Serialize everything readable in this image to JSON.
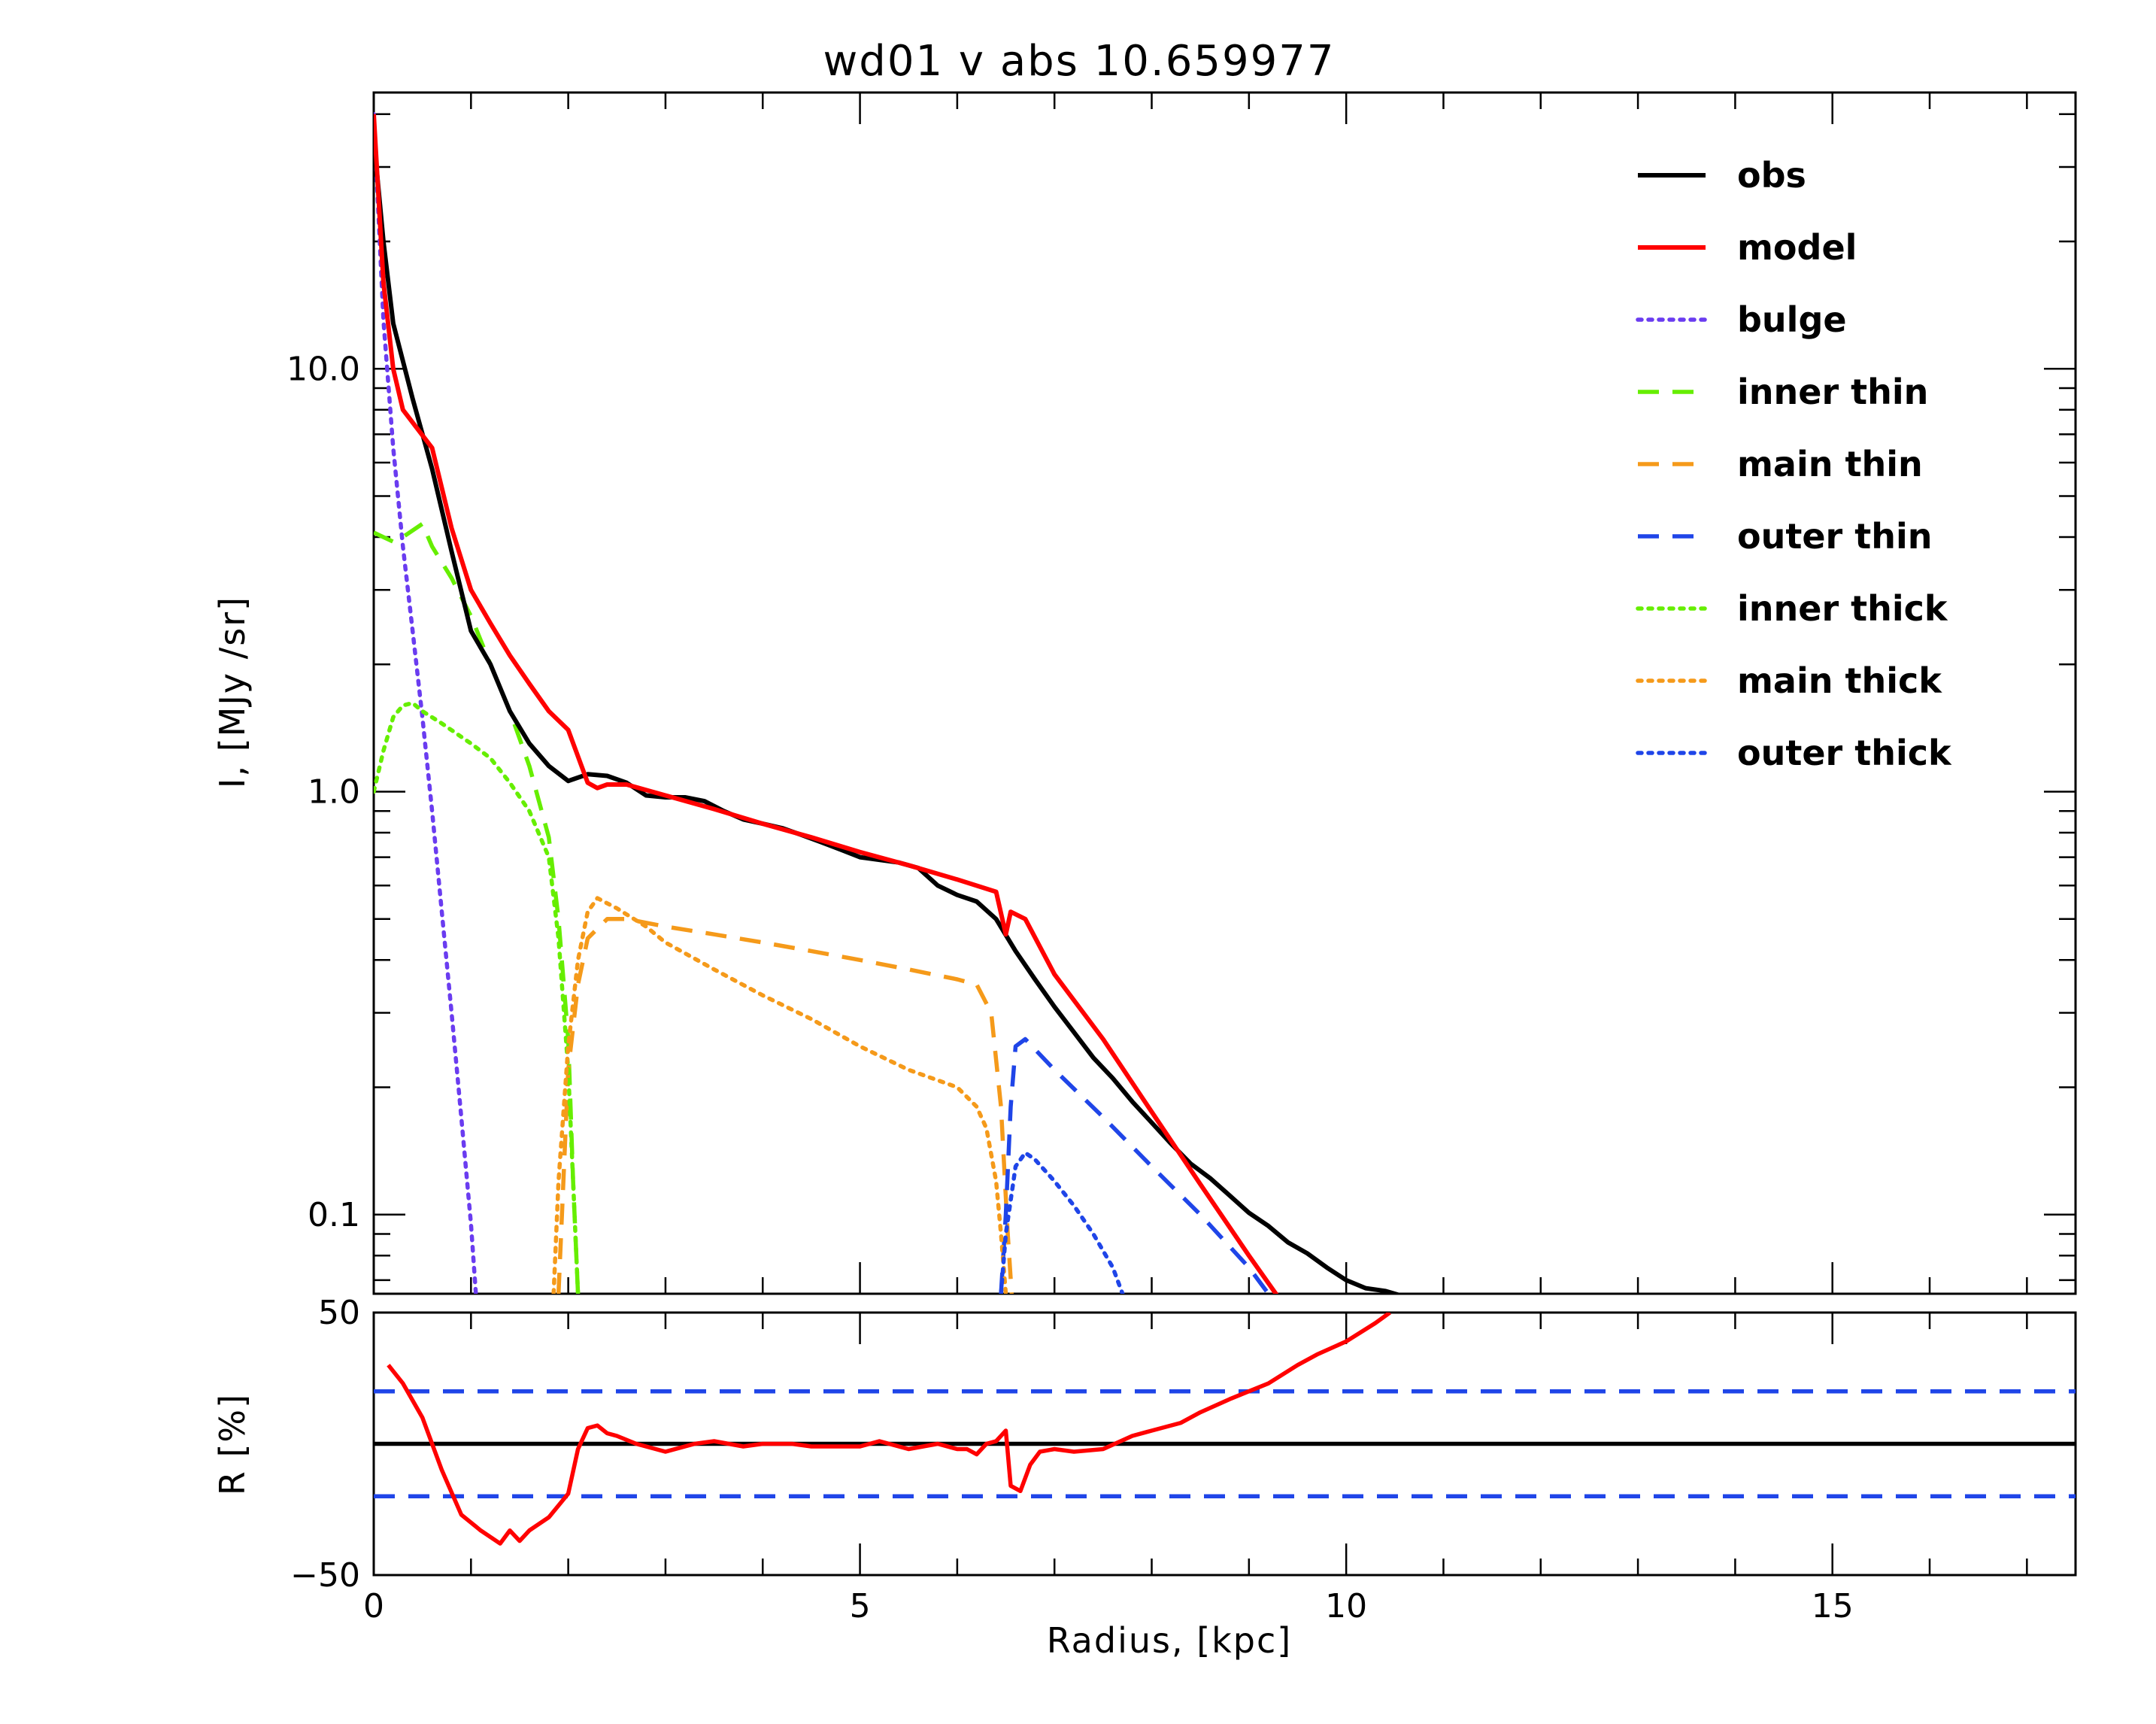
{
  "chart_data": {
    "type": "line",
    "title": "wd01 v abs 10.659977",
    "top_panel": {
      "ylabel": "I, [MJy /sr]",
      "yscale": "log",
      "ylim": [
        0.065,
        45
      ],
      "xlim": [
        0,
        17.5
      ],
      "y_tick_labels": [
        {
          "value": 0.1,
          "label": "0.1"
        },
        {
          "value": 1.0,
          "label": "1.0"
        },
        {
          "value": 10.0,
          "label": "10.0"
        }
      ],
      "legend_position": "top-right",
      "series": [
        {
          "name": "obs",
          "color": "#000000",
          "style": "solid",
          "x": [
            0,
            0.1,
            0.2,
            0.4,
            0.6,
            0.8,
            1.0,
            1.2,
            1.4,
            1.6,
            1.8,
            2.0,
            2.2,
            2.4,
            2.6,
            2.8,
            3.0,
            3.2,
            3.4,
            3.6,
            3.8,
            4.0,
            4.2,
            4.4,
            4.6,
            4.8,
            5.0,
            5.2,
            5.4,
            5.6,
            5.8,
            6.0,
            6.2,
            6.4,
            6.6,
            6.8,
            7.0,
            7.2,
            7.4,
            7.6,
            7.8,
            8.0,
            8.2,
            8.4,
            8.6,
            8.8,
            9.0,
            9.2,
            9.4,
            9.6,
            9.8,
            10.0,
            10.2,
            10.4,
            10.6,
            10.8
          ],
          "y": [
            35,
            20,
            12.8,
            8.5,
            5.8,
            3.7,
            2.4,
            2.0,
            1.55,
            1.3,
            1.15,
            1.06,
            1.1,
            1.09,
            1.05,
            0.98,
            0.97,
            0.97,
            0.95,
            0.9,
            0.86,
            0.84,
            0.82,
            0.79,
            0.76,
            0.73,
            0.7,
            0.69,
            0.68,
            0.66,
            0.6,
            0.57,
            0.55,
            0.5,
            0.42,
            0.36,
            0.31,
            0.27,
            0.235,
            0.21,
            0.185,
            0.165,
            0.147,
            0.132,
            0.122,
            0.111,
            0.101,
            0.094,
            0.086,
            0.081,
            0.075,
            0.07,
            0.067,
            0.066,
            0.064,
            0.061
          ]
        },
        {
          "name": "model",
          "color": "#ff0000",
          "style": "solid",
          "x": [
            0,
            0.1,
            0.2,
            0.3,
            0.6,
            0.8,
            1.0,
            1.2,
            1.4,
            1.6,
            1.8,
            2.0,
            2.2,
            2.3,
            2.4,
            2.6,
            3.0,
            3.5,
            4.0,
            4.5,
            5.0,
            5.5,
            6.0,
            6.4,
            6.5,
            6.55,
            6.7,
            7.0,
            7.5,
            8.0,
            8.5,
            9.0,
            9.5
          ],
          "y": [
            40,
            16,
            10,
            8,
            6.5,
            4.2,
            3.0,
            2.5,
            2.1,
            1.8,
            1.55,
            1.4,
            1.05,
            1.02,
            1.04,
            1.04,
            0.98,
            0.91,
            0.84,
            0.78,
            0.72,
            0.67,
            0.62,
            0.58,
            0.46,
            0.52,
            0.5,
            0.37,
            0.26,
            0.175,
            0.118,
            0.08,
            0.055
          ]
        },
        {
          "name": "bulge",
          "color": "#6a3cf0",
          "style": "dotted",
          "x": [
            0,
            0.1,
            0.2,
            0.3,
            0.4,
            0.5,
            0.6,
            0.7,
            0.8,
            0.9,
            1.0,
            1.05
          ],
          "y": [
            40,
            13,
            6.5,
            3.8,
            2.4,
            1.5,
            0.9,
            0.52,
            0.3,
            0.17,
            0.095,
            0.065
          ]
        },
        {
          "name": "inner thin",
          "color": "#66ee00",
          "style": "dashed",
          "x": [
            0,
            0.2,
            0.3,
            0.5,
            0.6,
            0.8,
            1.0,
            1.2,
            1.4,
            1.6,
            1.8,
            1.9,
            2.0,
            2.05,
            2.1
          ],
          "y": [
            4.1,
            3.9,
            4.0,
            4.3,
            3.8,
            3.2,
            2.6,
            2.0,
            1.55,
            1.15,
            0.78,
            0.5,
            0.26,
            0.12,
            0.065
          ]
        },
        {
          "name": "main thin",
          "color": "#f59a1a",
          "style": "dashed",
          "x": [
            1.9,
            1.95,
            2.0,
            2.1,
            2.2,
            2.4,
            2.6,
            3.0,
            3.5,
            4.0,
            4.5,
            5.0,
            5.5,
            6.0,
            6.2,
            6.35,
            6.45,
            6.52,
            6.56
          ],
          "y": [
            0.065,
            0.12,
            0.22,
            0.35,
            0.45,
            0.5,
            0.5,
            0.48,
            0.46,
            0.44,
            0.42,
            0.4,
            0.38,
            0.36,
            0.35,
            0.3,
            0.18,
            0.09,
            0.065
          ]
        },
        {
          "name": "outer thin",
          "color": "#1f45e8",
          "style": "dashed",
          "x": [
            6.45,
            6.5,
            6.55,
            6.6,
            6.7,
            7.0,
            7.5,
            8.0,
            8.5,
            9.0,
            9.2
          ],
          "y": [
            0.065,
            0.1,
            0.18,
            0.25,
            0.26,
            0.22,
            0.17,
            0.13,
            0.1,
            0.075,
            0.065
          ]
        },
        {
          "name": "inner thick",
          "color": "#66ee00",
          "style": "dotted",
          "x": [
            0,
            0.1,
            0.2,
            0.3,
            0.4,
            0.5,
            0.7,
            1.0,
            1.2,
            1.4,
            1.6,
            1.8,
            1.9,
            2.0,
            2.05,
            2.1
          ],
          "y": [
            1.0,
            1.25,
            1.5,
            1.6,
            1.62,
            1.55,
            1.45,
            1.3,
            1.2,
            1.05,
            0.9,
            0.7,
            0.45,
            0.22,
            0.12,
            0.065
          ]
        },
        {
          "name": "main thick",
          "color": "#f59a1a",
          "style": "dotted",
          "x": [
            1.85,
            1.9,
            2.0,
            2.1,
            2.2,
            2.3,
            2.5,
            2.8,
            3.0,
            3.5,
            4.0,
            4.5,
            5.0,
            5.5,
            6.0,
            6.2,
            6.3,
            6.4,
            6.45,
            6.5
          ],
          "y": [
            0.065,
            0.12,
            0.25,
            0.4,
            0.52,
            0.56,
            0.53,
            0.48,
            0.44,
            0.38,
            0.33,
            0.29,
            0.25,
            0.22,
            0.2,
            0.18,
            0.16,
            0.12,
            0.09,
            0.065
          ]
        },
        {
          "name": "outer thick",
          "color": "#1f45e8",
          "style": "dotted",
          "x": [
            6.45,
            6.5,
            6.6,
            6.7,
            6.8,
            7.0,
            7.2,
            7.4,
            7.6,
            7.7
          ],
          "y": [
            0.065,
            0.09,
            0.13,
            0.14,
            0.135,
            0.12,
            0.105,
            0.09,
            0.075,
            0.065
          ]
        }
      ]
    },
    "bottom_panel": {
      "ylabel": "R [%]",
      "xlabel": "Radius, [kpc]",
      "xlim": [
        0,
        17.5
      ],
      "ylim": [
        -50,
        50
      ],
      "y_tick_labels": [
        {
          "value": 50,
          "label": "50"
        },
        {
          "value": -50,
          "label": "−50"
        }
      ],
      "x_tick_labels": [
        {
          "value": 0,
          "label": "0"
        },
        {
          "value": 5,
          "label": "5"
        },
        {
          "value": 10,
          "label": "10"
        },
        {
          "value": 15,
          "label": "15"
        }
      ],
      "reference_lines": [
        {
          "y": 0,
          "color": "#000000",
          "style": "solid"
        },
        {
          "y": 20,
          "color": "#1f45e8",
          "style": "dashed"
        },
        {
          "y": -20,
          "color": "#1f45e8",
          "style": "dashed"
        }
      ],
      "series": [
        {
          "name": "residual",
          "color": "#ff0000",
          "style": "solid",
          "x": [
            0.15,
            0.3,
            0.5,
            0.7,
            0.9,
            1.1,
            1.3,
            1.4,
            1.5,
            1.6,
            1.8,
            2.0,
            2.1,
            2.2,
            2.3,
            2.4,
            2.5,
            2.7,
            3.0,
            3.3,
            3.5,
            3.8,
            4.0,
            4.3,
            4.5,
            4.8,
            5.0,
            5.2,
            5.5,
            5.8,
            6.0,
            6.1,
            6.2,
            6.3,
            6.4,
            6.5,
            6.55,
            6.65,
            6.75,
            6.85,
            7.0,
            7.2,
            7.5,
            7.8,
            8.0,
            8.3,
            8.5,
            8.8,
            9.0,
            9.2,
            9.5,
            9.7,
            10.0,
            10.3,
            10.45
          ],
          "y": [
            30,
            23,
            10,
            -10,
            -27,
            -33,
            -38,
            -33,
            -37,
            -33,
            -28,
            -19,
            -2,
            6,
            7,
            4,
            3,
            0,
            -3,
            0,
            1,
            -1,
            0,
            0,
            -1,
            -1,
            -1,
            1,
            -2,
            0,
            -2,
            -2,
            -4,
            0,
            1,
            5,
            -16,
            -18,
            -8,
            -3,
            -2,
            -3,
            -2,
            3,
            5,
            8,
            12,
            17,
            20,
            23,
            30,
            34,
            39,
            46,
            50
          ]
        }
      ]
    }
  }
}
